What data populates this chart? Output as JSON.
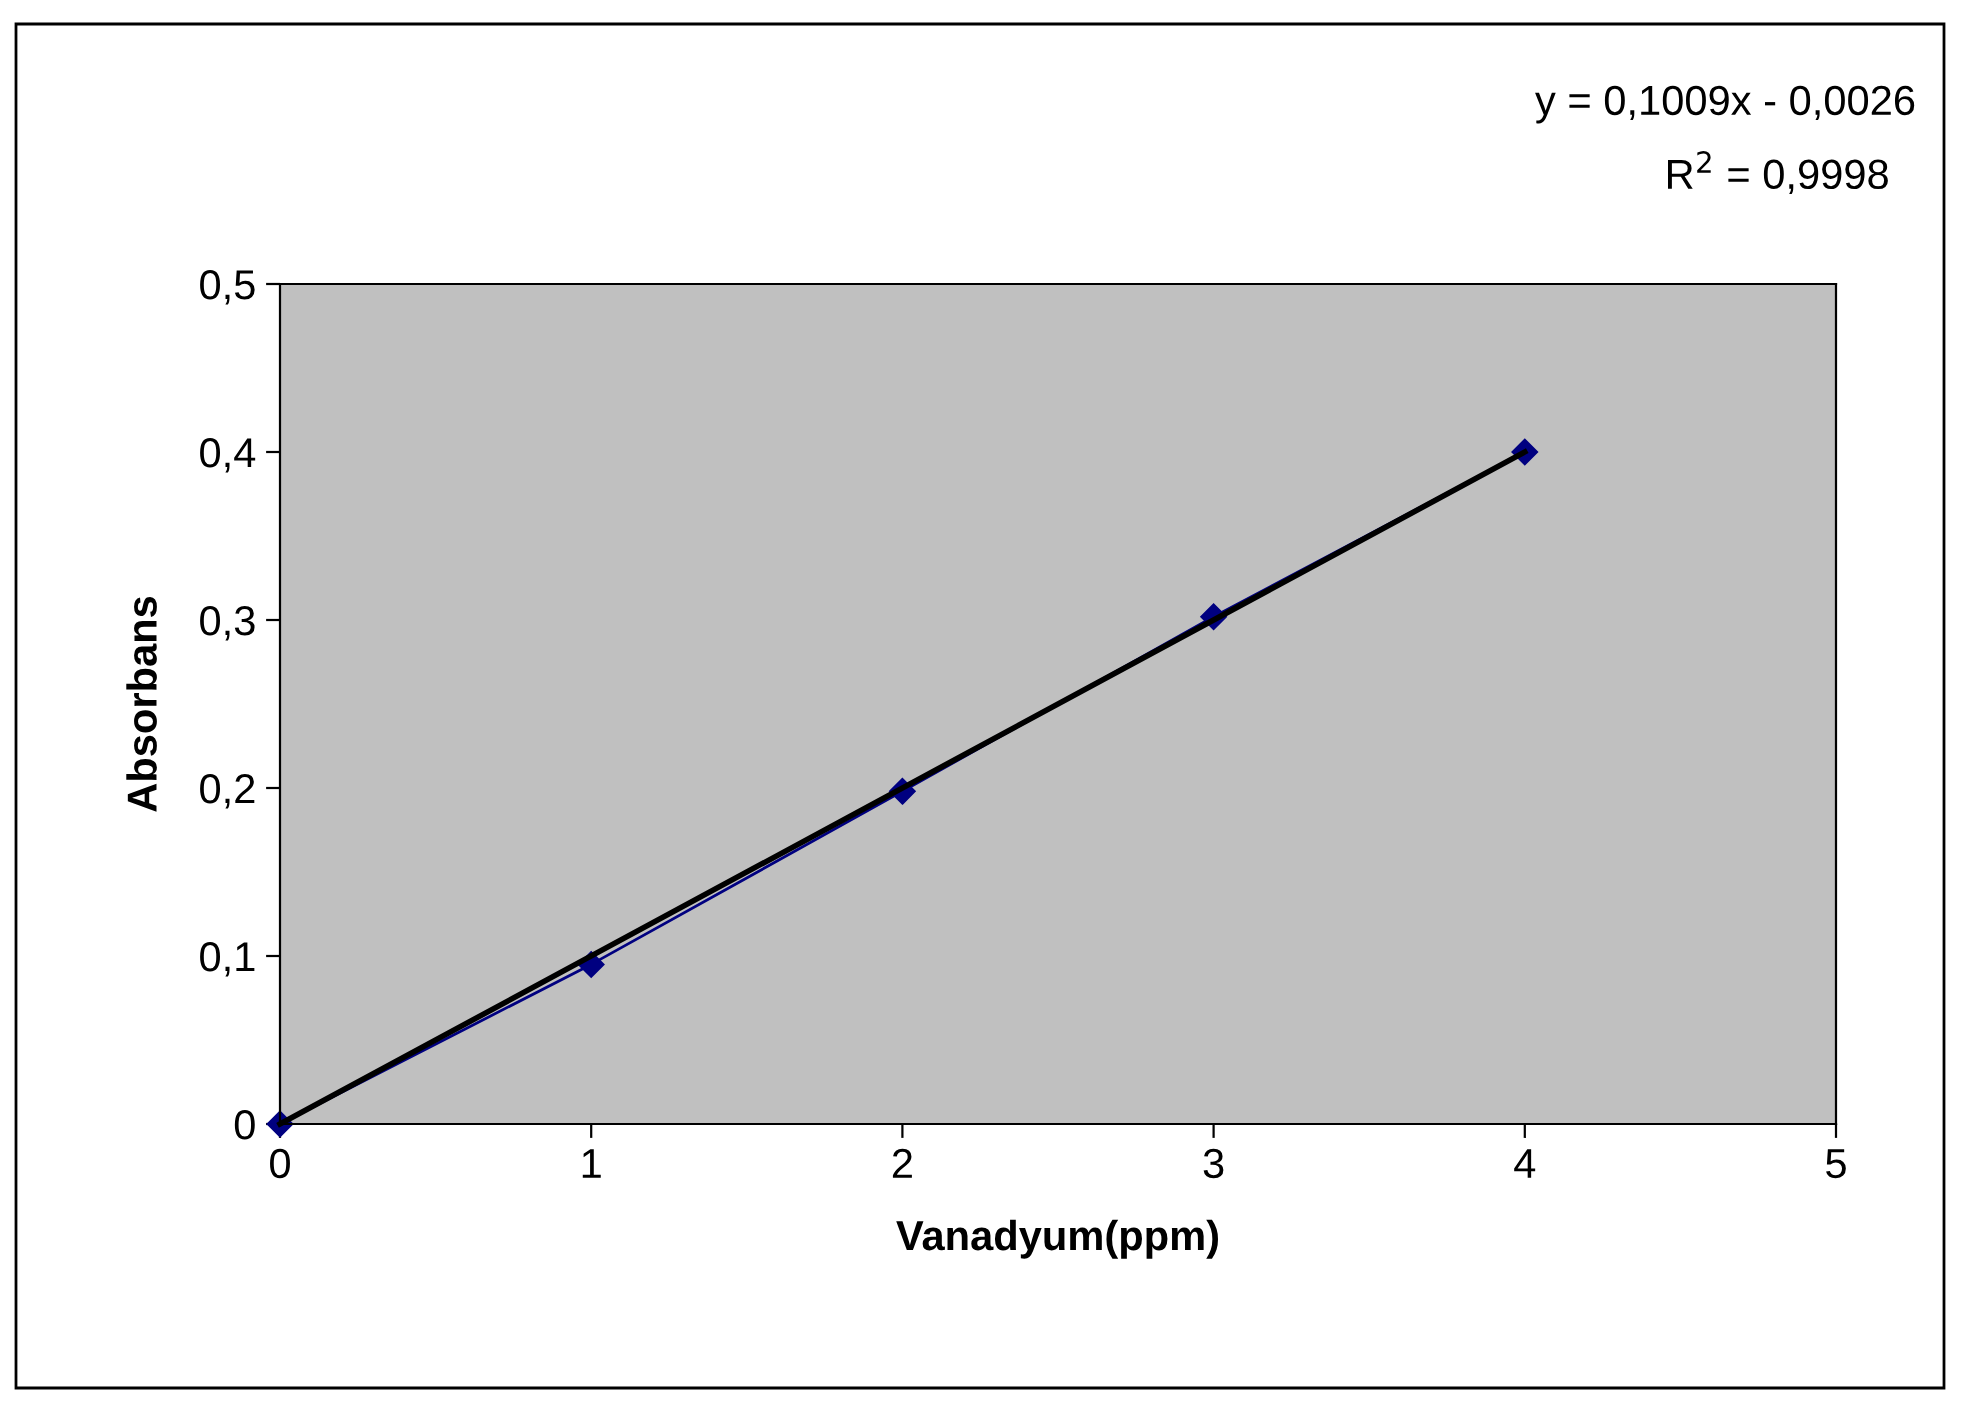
{
  "chart_data": {
    "type": "line",
    "xlabel": "Vanadyum(ppm)",
    "ylabel": "Absorbans",
    "annotations": [
      "y = 0,1009x - 0,0026",
      "R$^{2}$ = 0,9998"
    ],
    "x": [
      0,
      1,
      2,
      3,
      4
    ],
    "series": [
      {
        "color": "#000080",
        "values": [
          0,
          0.095,
          0.198,
          0.302,
          0.4
        ],
        "marker": "diamond"
      },
      {
        "type": "line",
        "color": "#000000",
        "x": [
          0,
          4
        ],
        "values": [
          0,
          0.4
        ],
        "marker": "none"
      }
    ],
    "xlim": [
      0,
      5
    ],
    "xticks": [
      {
        "value": 0,
        "label": "0"
      },
      1,
      2,
      3,
      4,
      5
    ],
    "ylim": [
      0,
      0.5
    ],
    "yticks": [
      {
        "value": 0,
        "label": "0"
      },
      {
        "value": 0.1,
        "label": "0,1"
      },
      {
        "value": 0.2,
        "label": "0,2"
      },
      {
        "value": 0.3,
        "label": "0,3"
      },
      {
        "value": 0.4,
        "label": "0,4"
      },
      {
        "value": 0.5,
        "label": "0,5"
      }
    ],
    "grid": false,
    "legend": false
  }
}
